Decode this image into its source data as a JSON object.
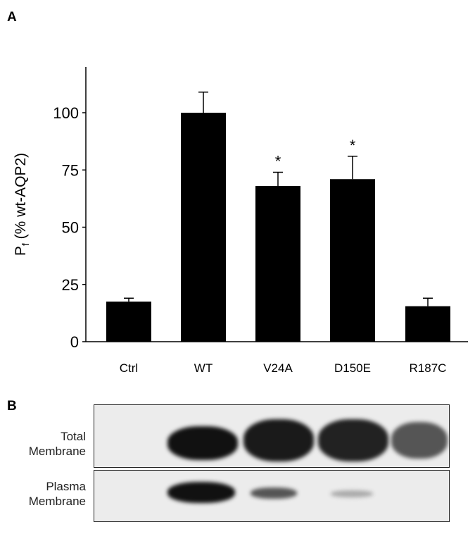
{
  "panel_a_label": "A",
  "panel_b_label": "B",
  "chart_data": {
    "type": "bar",
    "title": "",
    "xlabel": "",
    "ylabel_main": "P",
    "ylabel_sub": "f",
    "ylabel_rest": " (% wt-AQP2)",
    "categories": [
      "Ctrl",
      "WT",
      "V24A",
      "D150E",
      "R187C"
    ],
    "values": [
      17.5,
      100,
      68,
      71,
      15.5
    ],
    "error_upper": [
      19,
      109,
      74,
      81,
      19
    ],
    "significance": [
      "",
      "",
      "*",
      "*",
      ""
    ],
    "ylim": [
      0,
      120
    ],
    "yticks": [
      0,
      25,
      50,
      75,
      100
    ],
    "grid": false,
    "bar_color": "#000000"
  },
  "blot": {
    "rows": [
      {
        "label_line1": "Total",
        "label_line2": "Membrane"
      },
      {
        "label_line1": "Plasma",
        "label_line2": "Membrane"
      }
    ]
  }
}
